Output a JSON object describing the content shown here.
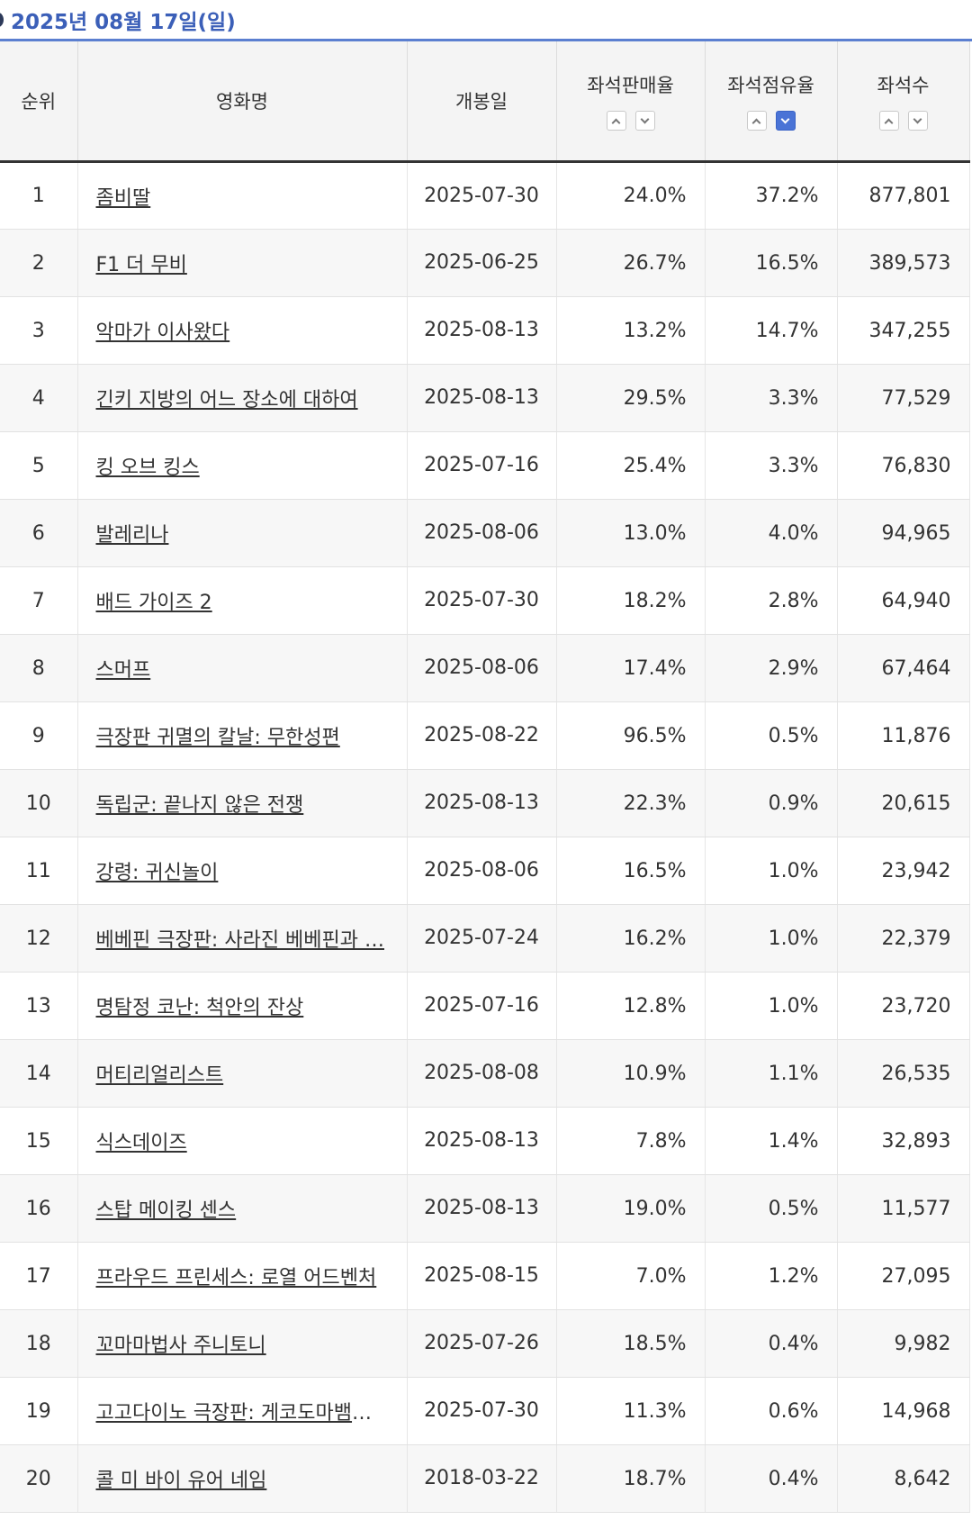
{
  "date_header": "2025년 08월 17일(일)",
  "columns": [
    "순위",
    "영화명",
    "개봉일",
    "좌석판매율",
    "좌석점유율",
    "좌석수"
  ],
  "sort": {
    "active": "좌석점유율",
    "direction": "down"
  },
  "rows": [
    {
      "rank": "1",
      "title": "좀비딸",
      "date": "2025-07-30",
      "sales": "24.0%",
      "share": "37.2%",
      "seats": "877,801"
    },
    {
      "rank": "2",
      "title": "F1 더 무비",
      "date": "2025-06-25",
      "sales": "26.7%",
      "share": "16.5%",
      "seats": "389,573"
    },
    {
      "rank": "3",
      "title": "악마가 이사왔다",
      "date": "2025-08-13",
      "sales": "13.2%",
      "share": "14.7%",
      "seats": "347,255"
    },
    {
      "rank": "4",
      "title": "긴키 지방의 어느 장소에 대하여",
      "date": "2025-08-13",
      "sales": "29.5%",
      "share": "3.3%",
      "seats": "77,529"
    },
    {
      "rank": "5",
      "title": "킹 오브 킹스",
      "date": "2025-07-16",
      "sales": "25.4%",
      "share": "3.3%",
      "seats": "76,830"
    },
    {
      "rank": "6",
      "title": "발레리나",
      "date": "2025-08-06",
      "sales": "13.0%",
      "share": "4.0%",
      "seats": "94,965"
    },
    {
      "rank": "7",
      "title": "배드 가이즈 2",
      "date": "2025-07-30",
      "sales": "18.2%",
      "share": "2.8%",
      "seats": "64,940"
    },
    {
      "rank": "8",
      "title": "스머프",
      "date": "2025-08-06",
      "sales": "17.4%",
      "share": "2.9%",
      "seats": "67,464"
    },
    {
      "rank": "9",
      "title": "극장판 귀멸의 칼날: 무한성편",
      "date": "2025-08-22",
      "sales": "96.5%",
      "share": "0.5%",
      "seats": "11,876"
    },
    {
      "rank": "10",
      "title": "독립군: 끝나지 않은 전쟁",
      "date": "2025-08-13",
      "sales": "22.3%",
      "share": "0.9%",
      "seats": "20,615"
    },
    {
      "rank": "11",
      "title": "강령: 귀신놀이",
      "date": "2025-08-06",
      "sales": "16.5%",
      "share": "1.0%",
      "seats": "23,942"
    },
    {
      "rank": "12",
      "title": "베베핀 극장판: 사라진 베베핀과 …",
      "date": "2025-07-24",
      "sales": "16.2%",
      "share": "1.0%",
      "seats": "22,379"
    },
    {
      "rank": "13",
      "title": "명탐정 코난: 척안의 잔상",
      "date": "2025-07-16",
      "sales": "12.8%",
      "share": "1.0%",
      "seats": "23,720"
    },
    {
      "rank": "14",
      "title": "머티리얼리스트",
      "date": "2025-08-08",
      "sales": "10.9%",
      "share": "1.1%",
      "seats": "26,535"
    },
    {
      "rank": "15",
      "title": "식스데이즈",
      "date": "2025-08-13",
      "sales": "7.8%",
      "share": "1.4%",
      "seats": "32,893"
    },
    {
      "rank": "16",
      "title": "스탑 메이킹 센스",
      "date": "2025-08-13",
      "sales": "19.0%",
      "share": "0.5%",
      "seats": "11,577"
    },
    {
      "rank": "17",
      "title": "프라우드 프린세스: 로열 어드벤처",
      "date": "2025-08-15",
      "sales": "7.0%",
      "share": "1.2%",
      "seats": "27,095"
    },
    {
      "rank": "18",
      "title": "꼬마마법사 주니토니",
      "date": "2025-07-26",
      "sales": "18.5%",
      "share": "0.4%",
      "seats": "9,982"
    },
    {
      "rank": "19",
      "title": "고고다이노 극장판: 게코도마뱀의 꿈",
      "date": "2025-07-30",
      "sales": "11.3%",
      "share": "0.6%",
      "seats": "14,968"
    },
    {
      "rank": "20",
      "title": "콜 미 바이 유어 네임",
      "date": "2018-03-22",
      "sales": "18.7%",
      "share": "0.4%",
      "seats": "8,642"
    }
  ]
}
